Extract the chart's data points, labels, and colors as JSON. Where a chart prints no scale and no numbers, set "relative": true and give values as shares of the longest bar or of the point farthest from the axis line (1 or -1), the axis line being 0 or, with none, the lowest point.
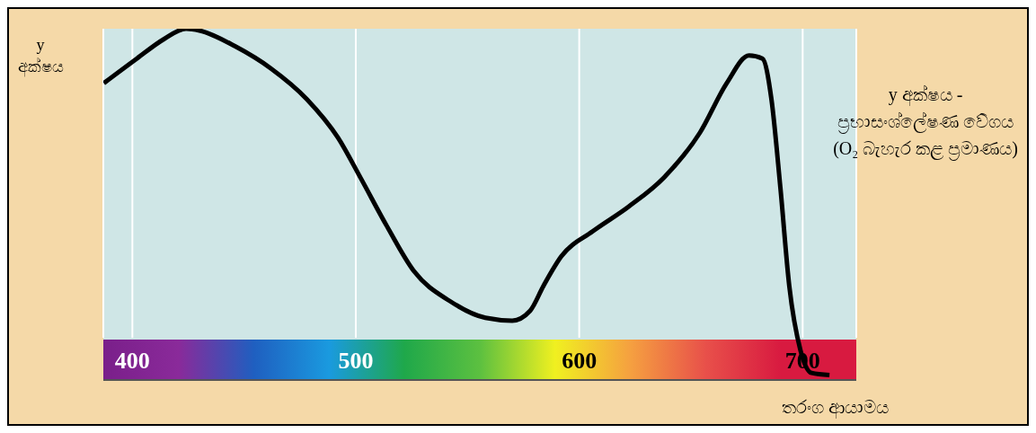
{
  "chart_data": {
    "type": "line",
    "relative": true,
    "ylabel": "y අක්ෂය",
    "xlabel": "තරංග ආයාමය",
    "annotations": [
      "y අක්ෂය - ප්‍රභාසංශ්ලේෂණ වේගය (O₂ බැහැර කළ ප්‍රමාණය)"
    ],
    "xlim": [
      387,
      724
    ],
    "xticks": [
      400,
      500,
      600,
      700
    ],
    "grid": "x",
    "x": [
      387.2,
      402,
      414,
      424,
      430,
      446,
      462,
      478,
      492,
      502,
      514,
      526,
      542,
      558,
      570,
      578,
      584,
      592,
      606,
      622,
      638,
      654,
      666,
      676,
      682,
      686,
      690,
      694,
      699,
      704,
      712
    ],
    "series": [
      {
        "color": "#000000",
        "values": [
          0.845,
          0.915,
          0.97,
          1,
          0.995,
          0.95,
          0.887,
          0.8,
          0.69,
          0.577,
          0.437,
          0.31,
          0.225,
          0.177,
          0.169,
          0.197,
          0.268,
          0.352,
          0.423,
          0.493,
          0.577,
          0.704,
          0.845,
          0.924,
          0.915,
          0.8,
          0.549,
          0.268,
          0.085,
          0.02,
          0.014
        ]
      }
    ]
  }
}
